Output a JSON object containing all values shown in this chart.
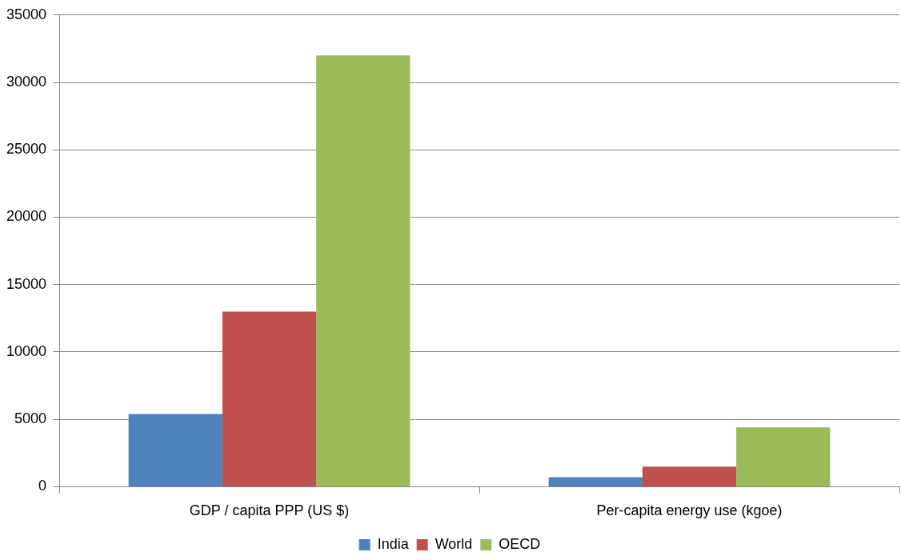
{
  "chart_data": {
    "type": "bar",
    "categories": [
      "GDP / capita PPP (US $)",
      "Per-capita energy use (kgoe)"
    ],
    "series": [
      {
        "name": "India",
        "color": "#4f81bd",
        "values": [
          5400,
          700
        ]
      },
      {
        "name": "World",
        "color": "#c0504d",
        "values": [
          13000,
          1500
        ]
      },
      {
        "name": "OECD",
        "color": "#9bbb59",
        "values": [
          32000,
          4400
        ]
      }
    ],
    "ylim": [
      0,
      35000
    ],
    "yticks": [
      0,
      5000,
      10000,
      15000,
      20000,
      25000,
      30000,
      35000
    ],
    "grid": "y",
    "legend": "bottom"
  }
}
